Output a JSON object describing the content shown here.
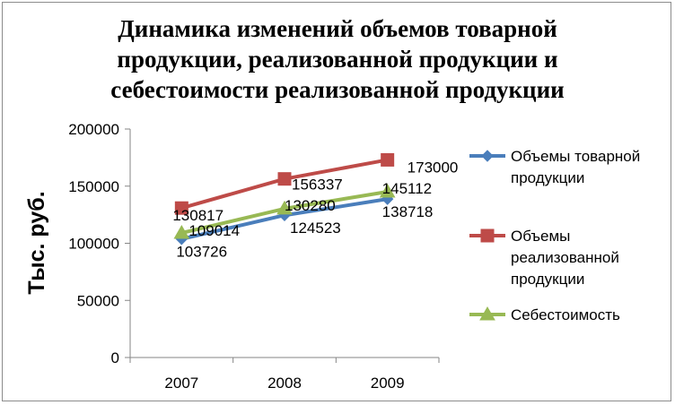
{
  "colors": {
    "series_1": "#4a7ebb",
    "series_2": "#be4b48",
    "series_3": "#98b954",
    "axis": "#868686",
    "text": "#000000"
  },
  "chart_data": {
    "type": "line",
    "title_lines": [
      "Динамика изменений объемов товарной",
      "продукции, реализованной продукции и",
      "себестоимости реализованной продукции"
    ],
    "xlabel": "",
    "ylabel": "Тыс. руб.",
    "categories": [
      "2007",
      "2008",
      "2009"
    ],
    "ylim": [
      0,
      200000
    ],
    "yticks": [
      "0",
      "50000",
      "100000",
      "150000",
      "200000"
    ],
    "grid": false,
    "legend_position": "right",
    "series": [
      {
        "name_lines": [
          "Объемы товарной",
          "продукции"
        ],
        "marker": "diamond",
        "color_key": "series_1",
        "values": [
          103726,
          124523,
          138718
        ],
        "labels": [
          "103726",
          "124523",
          "138718"
        ]
      },
      {
        "name_lines": [
          "Объемы",
          "реализованной",
          "продукции"
        ],
        "marker": "square",
        "color_key": "series_2",
        "values": [
          130817,
          156337,
          173000
        ],
        "labels": [
          "130817",
          "156337",
          "173000"
        ]
      },
      {
        "name_lines": [
          "Себестоимость"
        ],
        "marker": "triangle",
        "color_key": "series_3",
        "values": [
          109014,
          130280,
          145112
        ],
        "labels": [
          "109014",
          "130280",
          "145112"
        ]
      }
    ]
  }
}
